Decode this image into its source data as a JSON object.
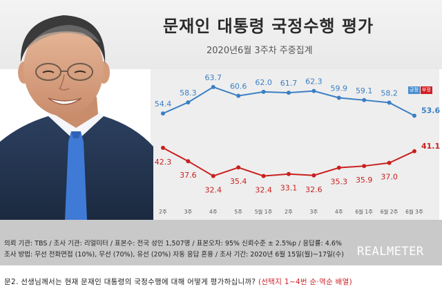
{
  "header": {
    "title": "문재인 대통령 국정수행 평가",
    "subtitle": "2020년6월 3주차 주중집계"
  },
  "legend": {
    "positive": "긍정",
    "negative": "부정"
  },
  "chart_data": {
    "type": "line",
    "title": "문재인 대통령 국정수행 평가",
    "subtitle": "2020년6월 3주차 주중집계",
    "categories": [
      "2주",
      "3주",
      "4주",
      "5주",
      "5월 1주",
      "2주",
      "3주",
      "4주",
      "6월 1주",
      "6월 2주",
      "6월 3주"
    ],
    "series": [
      {
        "name": "긍정",
        "color": "#3a7fc4",
        "values": [
          54.4,
          58.3,
          63.7,
          60.6,
          62.0,
          61.7,
          62.3,
          59.9,
          59.1,
          58.2,
          53.6
        ],
        "labels": [
          "54.4",
          "58.3",
          "63.7",
          "60.6",
          "62.0",
          "61.7",
          "62.3",
          "59.9",
          "59.1",
          "58.2",
          "53.6"
        ]
      },
      {
        "name": "부정",
        "color": "#c8201f",
        "values": [
          42.3,
          37.6,
          32.4,
          35.4,
          32.4,
          33.1,
          32.6,
          35.3,
          35.9,
          37.0,
          41.1
        ],
        "labels": [
          "42.3",
          "37.6",
          "32.4",
          "35.4",
          "32.4",
          "33.1",
          "32.6",
          "35.3",
          "35.9",
          "37.0",
          "41.1"
        ]
      }
    ],
    "xlabel": "",
    "ylabel": "",
    "grid": false,
    "legend_position": "top-right"
  },
  "info": {
    "line1": "의뢰 기관: TBS / 조사 기관: 리얼미터 / 표본수: 전국 성인 1,507명 / 표본오차: 95% 신뢰수준 ± 2.5%p / 응답률: 4.6%",
    "line2": "조사 방법: 무선 전화면접 (10%), 무선 (70%), 유선 (20%) 자동 응답 혼용 / 조사 기간: 2020년 6월 15일(월)~17일(수)",
    "brand": "REALMETER"
  },
  "question": {
    "text": "문2. 선생님께서는 현재 문재인 대통령의 국정수행에 대해 어떻게 평가하십니까?",
    "note": "(선택지 1~4번 순·역순 배열)"
  }
}
